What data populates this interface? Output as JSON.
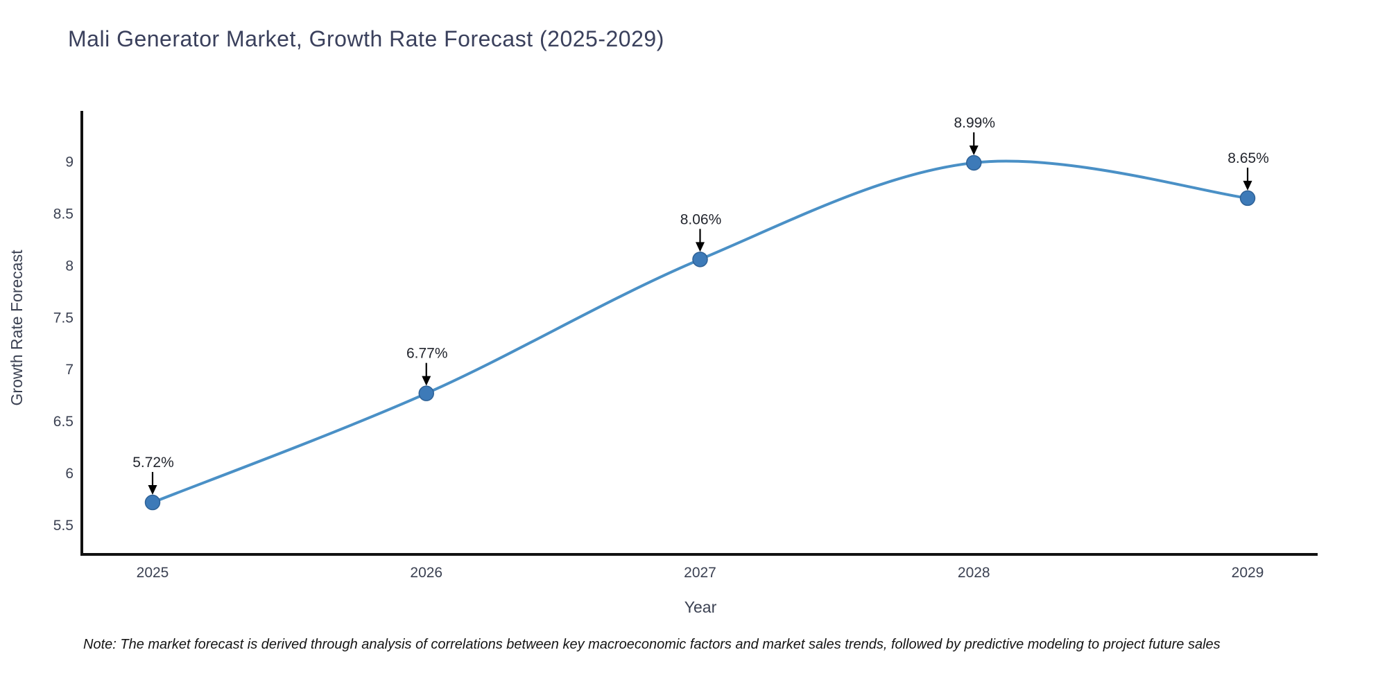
{
  "title": "Mali Generator Market, Growth Rate Forecast (2025-2029)",
  "note": "Note: The market forecast is derived through analysis of correlations between key macroeconomic factors and market sales trends, followed by predictive modeling to project future sales",
  "chart_data": {
    "type": "line",
    "x": [
      2025,
      2026,
      2027,
      2028,
      2029
    ],
    "values": [
      5.72,
      6.77,
      8.06,
      8.99,
      8.65
    ],
    "point_labels": [
      "5.72%",
      "6.77%",
      "8.06%",
      "8.99%",
      "8.65%"
    ],
    "xlabel": "Year",
    "ylabel": "Growth Rate Forecast",
    "yticks": [
      5.5,
      6,
      6.5,
      7,
      7.5,
      8,
      8.5,
      9
    ],
    "ylim": [
      5.22,
      9.49
    ],
    "grid": false,
    "legend": false,
    "smooth": true,
    "colors": {
      "line": "#4a90c6",
      "marker": "#3d7ab8",
      "marker_edge": "#2e6196",
      "axis": "#111111",
      "tick_text": "#3b4152",
      "axis_label_text": "#3b4152",
      "annotation_text": "#23262e",
      "arrow": "#000000"
    }
  }
}
